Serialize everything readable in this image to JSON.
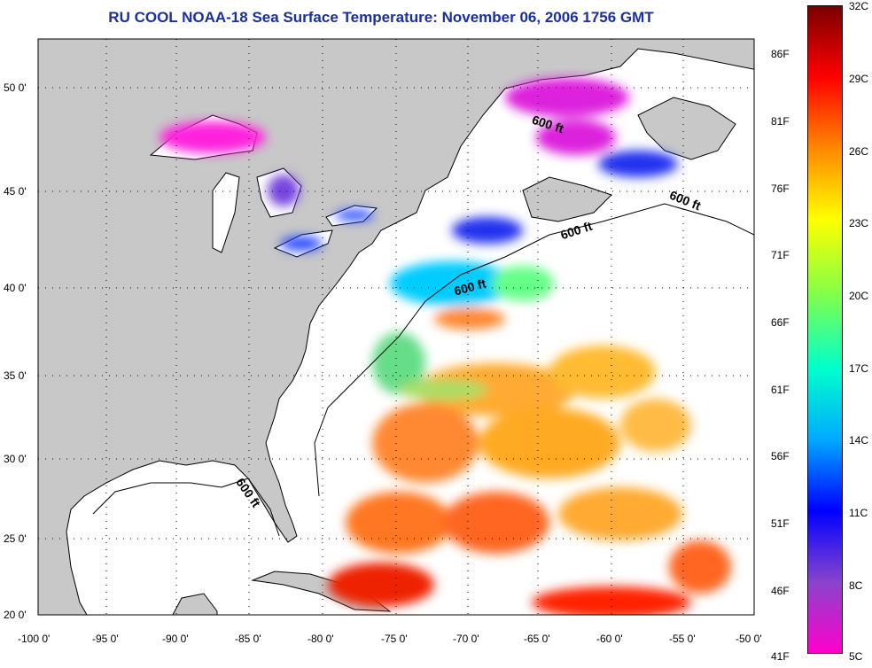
{
  "title": "RU COOL  NOAA-18  Sea Surface Temperature:  November 06, 2006 1756 GMT",
  "lat_labels": [
    "50 0'",
    "45 0'",
    "40 0'",
    "35 0'",
    "30 0'",
    "25 0'",
    "20 0'"
  ],
  "lon_labels": [
    "-100 0'",
    "-95 0'",
    "-90 0'",
    "-85 0'",
    "-80 0'",
    "-75 0'",
    "-70 0'",
    "-65 0'",
    "-60 0'",
    "-55 0'",
    "-50 0'"
  ],
  "isobath_labels": [
    "600 ft",
    "600 ft",
    "600 ft",
    "600 ft",
    "600 ft"
  ],
  "colorbar": {
    "fahrenheit": [
      "86F",
      "81F",
      "76F",
      "71F",
      "66F",
      "61F",
      "56F",
      "51F",
      "46F",
      "41F"
    ],
    "celsius": [
      "32C",
      "29C",
      "26C",
      "23C",
      "20C",
      "17C",
      "14C",
      "11C",
      "8C",
      "5C"
    ],
    "colors": [
      "#7a0000",
      "#ff0000",
      "#ff8800",
      "#ffff00",
      "#88ff44",
      "#00ffcc",
      "#00aaff",
      "#0000ff",
      "#8844cc",
      "#ff00cc"
    ]
  },
  "colors": {
    "land": "#c8c8c8",
    "title": "#1a2fa0",
    "cloud": "#ffffff"
  }
}
